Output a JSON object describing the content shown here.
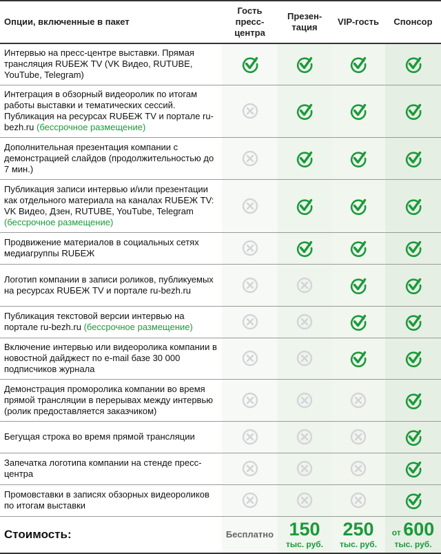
{
  "header": {
    "option": "Опции, включенные в пакет",
    "columns": [
      "Гость пресс-центра",
      "Презен-тация",
      "VIP-гость",
      "Спонсор"
    ]
  },
  "colors": {
    "check": "#1a9a3a",
    "cross": "#d4d4d8"
  },
  "rows": [
    {
      "text": "Интервью на пресс-центре выставки. Прямая трансляция RUБЕЖ TV (VK Видео, RUTUBE, YouTube, Telegram)",
      "highlight": "",
      "marks": [
        true,
        true,
        true,
        true
      ]
    },
    {
      "text": "Интеграция в обзорный видеоролик по итогам работы выставки и тематических сессий. Публикация на ресурсах RUБЕЖ TV и портале ru-bezh.ru",
      "highlight": "(бессрочное размещение)",
      "marks": [
        false,
        true,
        true,
        true
      ]
    },
    {
      "text": "Дополнительная презентация компании с демонстрацией слайдов (продолжительностью до 7 мин.)",
      "highlight": "",
      "marks": [
        false,
        true,
        true,
        true
      ]
    },
    {
      "text": "Публикация записи интервью и/или презентации как отдельного материала на каналах RUБЕЖ TV: VK Видео, Дзен, RUTUBE, YouTube, Telegram",
      "highlight": "(бессрочное размещение)",
      "marks": [
        false,
        true,
        true,
        true
      ]
    },
    {
      "text": "Продвижение материалов в социальных сетях медиагруппы RUБЕЖ",
      "highlight": "",
      "marks": [
        false,
        true,
        true,
        true
      ]
    },
    {
      "text": "Логотип компании в записи роликов, публикуемых на ресурсах RUБЕЖ TV и портале ru-bezh.ru",
      "highlight": "",
      "marks": [
        false,
        false,
        true,
        true
      ]
    },
    {
      "text": "Публикация текстовой версии интервью на портале ru-bezh.ru",
      "highlight": "(бессрочное размещение)",
      "marks": [
        false,
        false,
        true,
        true
      ]
    },
    {
      "text": "Включение интервью или видеоролика компании в новостной дайджест по e-mail базе 30 000 подписчиков журнала",
      "highlight": "",
      "marks": [
        false,
        false,
        true,
        true
      ]
    },
    {
      "text": "Демонстрация проморолика компании во время прямой трансляции в перерывах между интервью (ролик предоставляется заказчиком)",
      "highlight": "",
      "marks": [
        false,
        false,
        false,
        true
      ]
    },
    {
      "text": "Бегущая строка во время прямой трансляции",
      "highlight": "",
      "marks": [
        false,
        false,
        false,
        true
      ]
    },
    {
      "text": "Запечатка логотипа компании на стенде пресс-центра",
      "highlight": "",
      "marks": [
        false,
        false,
        false,
        true
      ]
    },
    {
      "text": "Промовставки в записях обзорных видеороликов по итогам выставки",
      "highlight": "",
      "marks": [
        false,
        false,
        false,
        true
      ]
    }
  ],
  "price": {
    "label": "Стоимость:",
    "free": "Бесплатно",
    "p2": "150",
    "p3": "250",
    "p4_prefix": "от",
    "p4": "600",
    "unit": "тыс. руб."
  }
}
